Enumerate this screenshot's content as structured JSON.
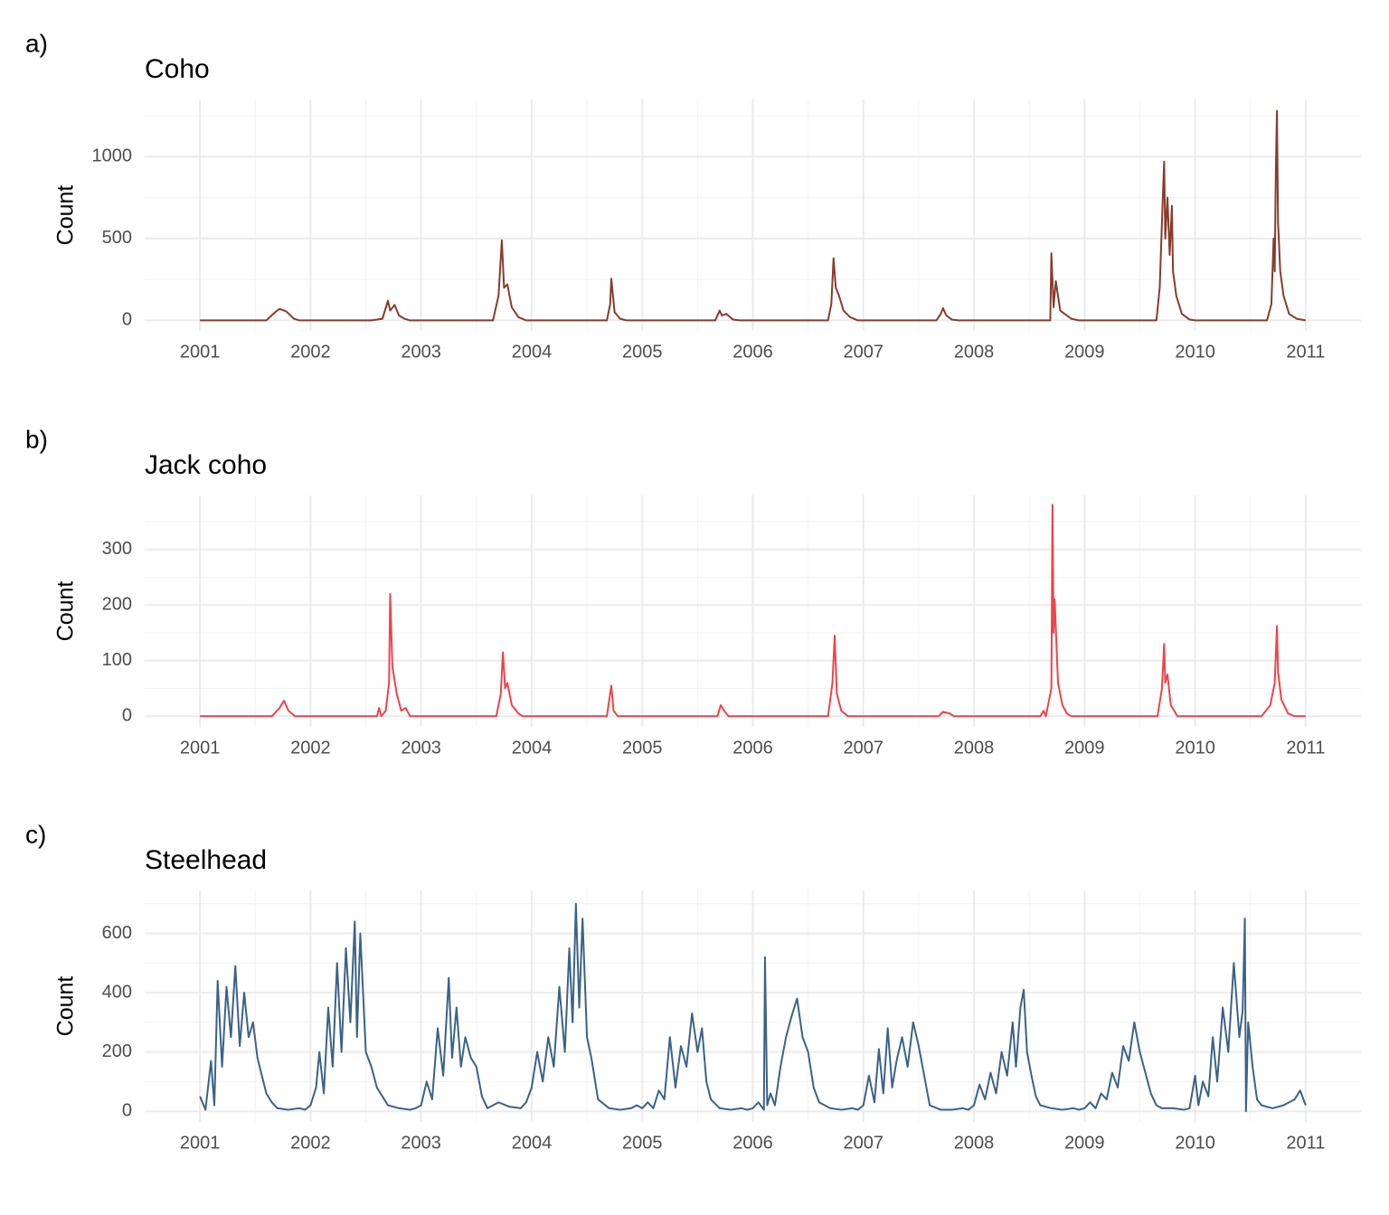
{
  "chart_data": [
    {
      "type": "line",
      "panel_label": "a)",
      "title": "Coho",
      "ylabel": "Count",
      "color": "#883c2c",
      "x": [
        2001.0,
        2001.6,
        2001.68,
        2001.72,
        2001.78,
        2001.85,
        2001.9,
        2002.55,
        2002.65,
        2002.7,
        2002.72,
        2002.76,
        2002.8,
        2002.85,
        2002.9,
        2003.65,
        2003.7,
        2003.73,
        2003.75,
        2003.78,
        2003.82,
        2003.88,
        2003.95,
        2004.68,
        2004.71,
        2004.72,
        2004.75,
        2004.8,
        2004.86,
        2005.66,
        2005.7,
        2005.72,
        2005.76,
        2005.82,
        2005.88,
        2006.68,
        2006.71,
        2006.73,
        2006.75,
        2006.78,
        2006.82,
        2006.88,
        2006.95,
        2007.66,
        2007.7,
        2007.72,
        2007.75,
        2007.8,
        2007.86,
        2008.69,
        2008.7,
        2008.72,
        2008.74,
        2008.78,
        2008.82,
        2008.88,
        2008.95,
        2009.65,
        2009.68,
        2009.7,
        2009.72,
        2009.73,
        2009.75,
        2009.77,
        2009.79,
        2009.8,
        2009.83,
        2009.88,
        2009.95,
        2010.0,
        2010.65,
        2010.69,
        2010.71,
        2010.72,
        2010.73,
        2010.74,
        2010.75,
        2010.77,
        2010.8,
        2010.85,
        2010.92,
        2011.0
      ],
      "values": [
        0,
        0,
        50,
        70,
        55,
        10,
        0,
        0,
        10,
        120,
        60,
        95,
        30,
        10,
        0,
        0,
        150,
        490,
        200,
        220,
        80,
        20,
        0,
        0,
        100,
        255,
        50,
        10,
        0,
        0,
        60,
        30,
        40,
        5,
        0,
        0,
        100,
        380,
        200,
        150,
        60,
        20,
        0,
        0,
        40,
        75,
        30,
        5,
        0,
        0,
        410,
        80,
        240,
        60,
        40,
        10,
        0,
        0,
        200,
        600,
        970,
        500,
        750,
        400,
        700,
        300,
        150,
        40,
        5,
        0,
        0,
        100,
        500,
        300,
        900,
        1280,
        600,
        300,
        150,
        40,
        10,
        0
      ],
      "xlim": [
        2000.5,
        2011.5
      ],
      "xticks": [
        2001,
        2002,
        2003,
        2004,
        2005,
        2006,
        2007,
        2008,
        2009,
        2010,
        2011
      ],
      "xminor": [
        2001.5,
        2002.5,
        2003.5,
        2004.5,
        2005.5,
        2006.5,
        2007.5,
        2008.5,
        2009.5,
        2010.5
      ],
      "ylim": [
        -64,
        1350
      ],
      "yticks": [
        0,
        500,
        1000
      ],
      "yminor": [
        250,
        750,
        1250
      ],
      "grid": true
    },
    {
      "type": "line",
      "panel_label": "b)",
      "title": "Jack coho",
      "ylabel": "Count",
      "color": "#f2424a",
      "x": [
        2001.0,
        2001.65,
        2001.72,
        2001.76,
        2001.8,
        2001.86,
        2002.6,
        2002.62,
        2002.64,
        2002.68,
        2002.71,
        2002.72,
        2002.74,
        2002.78,
        2002.82,
        2002.86,
        2002.9,
        2003.68,
        2003.72,
        2003.74,
        2003.76,
        2003.78,
        2003.82,
        2003.88,
        2003.92,
        2004.68,
        2004.72,
        2004.74,
        2004.78,
        2005.68,
        2005.71,
        2005.74,
        2005.78,
        2006.68,
        2006.72,
        2006.74,
        2006.76,
        2006.8,
        2006.86,
        2007.68,
        2007.72,
        2007.78,
        2007.82,
        2008.6,
        2008.63,
        2008.65,
        2008.7,
        2008.71,
        2008.72,
        2008.73,
        2008.76,
        2008.8,
        2008.84,
        2008.88,
        2009.66,
        2009.7,
        2009.72,
        2009.73,
        2009.75,
        2009.78,
        2009.84,
        2010.6,
        2010.64,
        2010.68,
        2010.72,
        2010.74,
        2010.75,
        2010.78,
        2010.84,
        2010.9,
        2011.0
      ],
      "values": [
        0,
        0,
        15,
        28,
        10,
        0,
        0,
        15,
        0,
        10,
        60,
        220,
        90,
        40,
        10,
        15,
        0,
        0,
        40,
        115,
        50,
        60,
        20,
        5,
        0,
        0,
        55,
        10,
        0,
        0,
        20,
        10,
        0,
        0,
        60,
        145,
        40,
        10,
        0,
        0,
        8,
        5,
        0,
        0,
        10,
        0,
        50,
        380,
        150,
        210,
        60,
        20,
        5,
        0,
        0,
        50,
        130,
        60,
        75,
        20,
        0,
        0,
        10,
        20,
        60,
        162,
        80,
        30,
        5,
        0,
        0
      ],
      "xlim": [
        2000.5,
        2011.5
      ],
      "xticks": [
        2001,
        2002,
        2003,
        2004,
        2005,
        2006,
        2007,
        2008,
        2009,
        2010,
        2011
      ],
      "xminor": [
        2001.5,
        2002.5,
        2003.5,
        2004.5,
        2005.5,
        2006.5,
        2007.5,
        2008.5,
        2009.5,
        2010.5
      ],
      "ylim": [
        -19,
        397
      ],
      "yticks": [
        0,
        100,
        200,
        300
      ],
      "yminor": [
        50,
        150,
        250,
        350
      ],
      "grid": true
    },
    {
      "type": "line",
      "panel_label": "c)",
      "title": "Steelhead",
      "ylabel": "Count",
      "color": "#3b6287",
      "x": [
        2001.0,
        2001.05,
        2001.1,
        2001.13,
        2001.16,
        2001.2,
        2001.24,
        2001.28,
        2001.32,
        2001.36,
        2001.4,
        2001.44,
        2001.48,
        2001.52,
        2001.56,
        2001.6,
        2001.65,
        2001.7,
        2001.8,
        2001.9,
        2001.95,
        2002.0,
        2002.05,
        2002.08,
        2002.12,
        2002.16,
        2002.2,
        2002.24,
        2002.28,
        2002.32,
        2002.36,
        2002.4,
        2002.42,
        2002.45,
        2002.5,
        2002.55,
        2002.6,
        2002.65,
        2002.7,
        2002.8,
        2002.9,
        2002.95,
        2003.0,
        2003.05,
        2003.1,
        2003.15,
        2003.2,
        2003.25,
        2003.28,
        2003.32,
        2003.36,
        2003.4,
        2003.45,
        2003.5,
        2003.55,
        2003.6,
        2003.7,
        2003.8,
        2003.9,
        2003.95,
        2004.0,
        2004.05,
        2004.1,
        2004.15,
        2004.2,
        2004.25,
        2004.3,
        2004.34,
        2004.37,
        2004.4,
        2004.43,
        2004.46,
        2004.5,
        2004.54,
        2004.6,
        2004.7,
        2004.8,
        2004.9,
        2004.95,
        2005.0,
        2005.05,
        2005.1,
        2005.15,
        2005.2,
        2005.25,
        2005.3,
        2005.35,
        2005.4,
        2005.45,
        2005.5,
        2005.54,
        2005.58,
        2005.62,
        2005.7,
        2005.8,
        2005.9,
        2005.95,
        2006.0,
        2006.05,
        2006.1,
        2006.11,
        2006.13,
        2006.16,
        2006.2,
        2006.25,
        2006.3,
        2006.35,
        2006.4,
        2006.45,
        2006.5,
        2006.55,
        2006.6,
        2006.7,
        2006.8,
        2006.9,
        2006.95,
        2007.0,
        2007.05,
        2007.1,
        2007.14,
        2007.18,
        2007.22,
        2007.26,
        2007.3,
        2007.35,
        2007.4,
        2007.45,
        2007.5,
        2007.55,
        2007.6,
        2007.7,
        2007.8,
        2007.9,
        2007.95,
        2008.0,
        2008.05,
        2008.1,
        2008.15,
        2008.2,
        2008.25,
        2008.3,
        2008.35,
        2008.38,
        2008.42,
        2008.45,
        2008.48,
        2008.52,
        2008.56,
        2008.6,
        2008.7,
        2008.8,
        2008.9,
        2008.95,
        2009.0,
        2009.05,
        2009.1,
        2009.15,
        2009.2,
        2009.25,
        2009.3,
        2009.35,
        2009.4,
        2009.45,
        2009.5,
        2009.55,
        2009.6,
        2009.65,
        2009.7,
        2009.8,
        2009.9,
        2009.95,
        2010.0,
        2010.03,
        2010.07,
        2010.12,
        2010.16,
        2010.2,
        2010.25,
        2010.3,
        2010.35,
        2010.4,
        2010.43,
        2010.45,
        2010.46,
        2010.48,
        2010.52,
        2010.56,
        2010.6,
        2010.7,
        2010.8,
        2010.9,
        2010.95,
        2011.0
      ],
      "values": [
        50,
        5,
        170,
        20,
        440,
        150,
        420,
        250,
        490,
        220,
        400,
        250,
        300,
        180,
        120,
        60,
        30,
        10,
        5,
        10,
        5,
        20,
        80,
        200,
        60,
        350,
        150,
        500,
        200,
        550,
        300,
        640,
        250,
        600,
        200,
        150,
        80,
        50,
        20,
        10,
        5,
        10,
        20,
        100,
        40,
        280,
        120,
        450,
        180,
        350,
        150,
        250,
        180,
        150,
        50,
        10,
        30,
        15,
        10,
        30,
        80,
        200,
        100,
        250,
        150,
        420,
        200,
        550,
        300,
        700,
        350,
        650,
        250,
        180,
        40,
        10,
        5,
        10,
        20,
        10,
        30,
        10,
        70,
        40,
        250,
        80,
        220,
        150,
        330,
        200,
        280,
        100,
        40,
        10,
        5,
        10,
        5,
        10,
        30,
        5,
        520,
        20,
        60,
        20,
        150,
        250,
        320,
        380,
        250,
        200,
        80,
        30,
        10,
        5,
        10,
        5,
        20,
        120,
        30,
        210,
        60,
        280,
        80,
        170,
        250,
        150,
        300,
        220,
        120,
        20,
        5,
        5,
        10,
        5,
        20,
        90,
        40,
        130,
        60,
        200,
        120,
        300,
        150,
        350,
        410,
        200,
        120,
        50,
        20,
        10,
        5,
        10,
        5,
        10,
        30,
        10,
        60,
        40,
        130,
        80,
        220,
        170,
        300,
        200,
        130,
        60,
        20,
        10,
        10,
        5,
        10,
        120,
        20,
        100,
        50,
        250,
        100,
        350,
        200,
        500,
        250,
        340,
        650,
        0,
        300,
        150,
        40,
        20,
        10,
        20,
        40,
        70,
        20
      ],
      "xlim": [
        2000.5,
        2011.5
      ],
      "xticks": [
        2001,
        2002,
        2003,
        2004,
        2005,
        2006,
        2007,
        2008,
        2009,
        2010,
        2011
      ],
      "xminor": [
        2001.5,
        2002.5,
        2003.5,
        2004.5,
        2005.5,
        2006.5,
        2007.5,
        2008.5,
        2009.5,
        2010.5
      ],
      "ylim": [
        -36,
        745
      ],
      "yticks": [
        0,
        200,
        400,
        600
      ],
      "yminor": [
        100,
        300,
        500,
        700
      ],
      "grid": true
    }
  ]
}
